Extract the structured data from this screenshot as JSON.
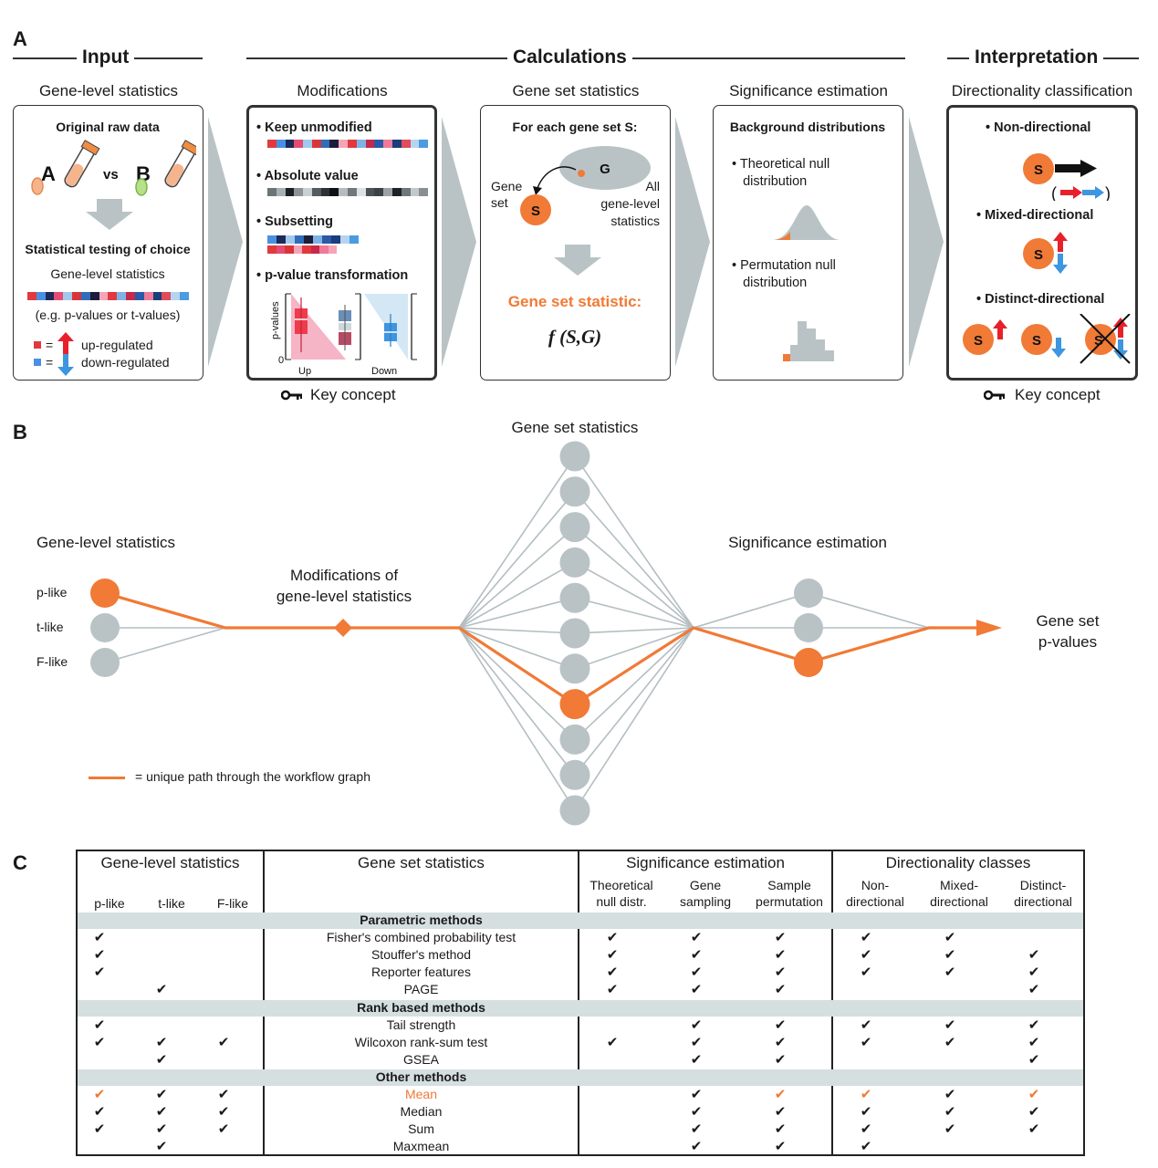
{
  "panel_a": {
    "letter": "A",
    "sections": {
      "input": "Input",
      "calculations": "Calculations",
      "interpretation": "Interpretation"
    },
    "columns": {
      "gene_level": "Gene-level statistics",
      "modifications": "Modifications",
      "gene_set_stats": "Gene set statistics",
      "significance": "Significance estimation",
      "directionality": "Directionality classification"
    },
    "input_box": {
      "title": "Original raw data",
      "label_a": "A",
      "vs": "vs",
      "label_b": "B",
      "testing": "Statistical testing of choice",
      "subtitle": "Gene-level statistics",
      "example": "(e.g. p-values or t-values)",
      "equals": "=",
      "up": "up-regulated",
      "down": "down-regulated"
    },
    "modifications_box": {
      "items": [
        "Keep unmodified",
        "Absolute value",
        "Subsetting",
        "p-value transformation"
      ],
      "y_label": "p-values",
      "zero": "0",
      "up": "Up",
      "down": "Down"
    },
    "gene_set_box": {
      "title": "For each gene set S:",
      "g": "G",
      "s": "S",
      "gene_set_label": [
        "Gene",
        "set"
      ],
      "all_label": [
        "All",
        "gene-level",
        "statistics"
      ],
      "statistic_title": "Gene set statistic:",
      "formula": "f (S,G)"
    },
    "significance_box": {
      "title": "Background distributions",
      "theoretical": [
        "Theoretical null",
        "distribution"
      ],
      "permutation": [
        "Permutation null",
        "distribution"
      ]
    },
    "direction_box": {
      "non": "Non-directional",
      "mixed": "Mixed-directional",
      "distinct": "Distinct-directional",
      "s": "S",
      "paren_open": "(",
      "paren_close": ")"
    },
    "key_concept": "Key concept"
  },
  "panel_b": {
    "letter": "B",
    "gene_level": "Gene-level statistics",
    "nodes_gene_level": [
      "p-like",
      "t-like",
      "F-like"
    ],
    "modifications": [
      "Modifications of",
      "gene-level statistics"
    ],
    "gene_set_statistics": "Gene set statistics",
    "significance": "Significance estimation",
    "output": [
      "Gene set",
      "p-values"
    ],
    "legend": "= unique path through the workflow graph",
    "colors": {
      "path": "#f07a36",
      "node": "#b9c3c6",
      "edge": "#b3bec2"
    }
  },
  "panel_c": {
    "letter": "C",
    "headers": {
      "gene_level": "Gene-level statistics",
      "gene_set": "Gene set statistics",
      "significance": "Significance estimation",
      "directionality": "Directionality classes"
    },
    "subheaders": {
      "gene_level": [
        "p-like",
        "t-like",
        "F-like"
      ],
      "significance": [
        [
          "Theoretical",
          "null distr."
        ],
        [
          "Gene",
          "sampling"
        ],
        [
          "Sample",
          "permutation"
        ]
      ],
      "directionality": [
        [
          "Non-",
          "directional"
        ],
        [
          "Mixed-",
          "directional"
        ],
        [
          "Distinct-",
          "directional"
        ]
      ]
    },
    "check_glyph": "✔",
    "rows": [
      {
        "group": "Parametric methods"
      },
      {
        "name": "Fisher's combined probability test",
        "checks": [
          1,
          0,
          0,
          1,
          1,
          1,
          1,
          1,
          0
        ]
      },
      {
        "name": "Stouffer's method",
        "checks": [
          1,
          0,
          0,
          1,
          1,
          1,
          1,
          1,
          1
        ]
      },
      {
        "name": "Reporter features",
        "checks": [
          1,
          0,
          0,
          1,
          1,
          1,
          1,
          1,
          1
        ]
      },
      {
        "name": "PAGE",
        "checks": [
          0,
          1,
          0,
          1,
          1,
          1,
          0,
          0,
          1
        ]
      },
      {
        "group": "Rank based methods"
      },
      {
        "name": "Tail strength",
        "checks": [
          1,
          0,
          0,
          0,
          1,
          1,
          1,
          1,
          1
        ]
      },
      {
        "name": "Wilcoxon rank-sum test",
        "checks": [
          1,
          1,
          1,
          1,
          1,
          1,
          1,
          1,
          1
        ]
      },
      {
        "name": "GSEA",
        "checks": [
          0,
          1,
          0,
          0,
          1,
          1,
          0,
          0,
          1
        ]
      },
      {
        "group": "Other methods"
      },
      {
        "name": "Mean",
        "highlight": true,
        "checks": [
          1,
          1,
          1,
          0,
          1,
          1,
          1,
          1,
          1
        ],
        "orange": [
          0,
          5,
          6,
          8
        ]
      },
      {
        "name": "Median",
        "checks": [
          1,
          1,
          1,
          0,
          1,
          1,
          1,
          1,
          1
        ]
      },
      {
        "name": "Sum",
        "checks": [
          1,
          1,
          1,
          0,
          1,
          1,
          1,
          1,
          1
        ]
      },
      {
        "name": "Maxmean",
        "checks": [
          0,
          1,
          0,
          0,
          1,
          1,
          1,
          0,
          0
        ]
      }
    ]
  }
}
